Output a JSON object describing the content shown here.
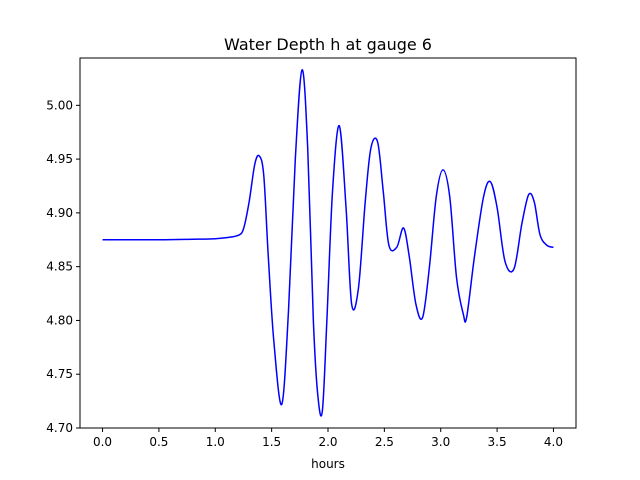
{
  "chart_data": {
    "type": "line",
    "title": "Water Depth h at gauge 6",
    "xlabel": "hours",
    "ylabel": "",
    "xlim": [
      -0.2,
      4.2
    ],
    "ylim": [
      4.7,
      5.044
    ],
    "xticks": [
      0.0,
      0.5,
      1.0,
      1.5,
      2.0,
      2.5,
      3.0,
      3.5,
      4.0
    ],
    "xtick_labels": [
      "0.0",
      "0.5",
      "1.0",
      "1.5",
      "2.0",
      "2.5",
      "3.0",
      "3.5",
      "4.0"
    ],
    "yticks": [
      4.7,
      4.75,
      4.8,
      4.85,
      4.9,
      4.95,
      5.0
    ],
    "ytick_labels": [
      "4.70",
      "4.75",
      "4.80",
      "4.85",
      "4.90",
      "4.95",
      "5.00"
    ],
    "grid": false,
    "legend": "none",
    "series": [
      {
        "color": "#0000ff",
        "x": [
          0.0,
          0.5,
          0.8,
          1.0,
          1.1,
          1.2,
          1.25,
          1.3,
          1.35,
          1.39,
          1.43,
          1.47,
          1.52,
          1.59,
          1.65,
          1.71,
          1.77,
          1.82,
          1.87,
          1.91,
          1.95,
          1.99,
          2.04,
          2.1,
          2.16,
          2.21,
          2.27,
          2.33,
          2.38,
          2.44,
          2.49,
          2.54,
          2.61,
          2.67,
          2.72,
          2.78,
          2.84,
          2.9,
          2.96,
          3.02,
          3.08,
          3.14,
          3.2,
          3.23,
          3.3,
          3.38,
          3.44,
          3.5,
          3.57,
          3.65,
          3.72,
          3.78,
          3.83,
          3.88,
          3.94,
          4.0
        ],
        "y": [
          4.875,
          4.875,
          4.8755,
          4.876,
          4.877,
          4.879,
          4.885,
          4.91,
          4.945,
          4.953,
          4.935,
          4.86,
          4.78,
          4.722,
          4.81,
          4.95,
          5.033,
          4.96,
          4.8,
          4.73,
          4.716,
          4.8,
          4.92,
          4.981,
          4.905,
          4.815,
          4.83,
          4.91,
          4.96,
          4.966,
          4.92,
          4.87,
          4.868,
          4.886,
          4.86,
          4.815,
          4.803,
          4.85,
          4.915,
          4.94,
          4.915,
          4.84,
          4.806,
          4.803,
          4.86,
          4.915,
          4.929,
          4.905,
          4.855,
          4.848,
          4.89,
          4.917,
          4.91,
          4.88,
          4.87,
          4.868
        ]
      }
    ]
  }
}
